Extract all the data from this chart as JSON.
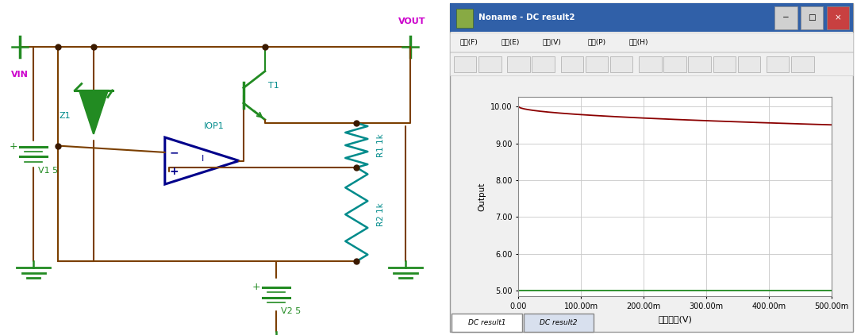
{
  "fig_width": 10.8,
  "fig_height": 4.22,
  "bg_color": "#ffffff",
  "right_bg": "#f0f0f0",
  "window_title": "Noname - DC result2",
  "menu_items": [
    "文件(F)",
    "編輯(E)",
    "視圖(V)",
    "處理(P)",
    "幫助(H)"
  ],
  "tab1": "DC result1",
  "tab2": "DC result2",
  "ylabel": "Output",
  "xlabel": "輸入電壓(V)",
  "yticks": [
    5.0,
    6.0,
    7.0,
    8.0,
    9.0,
    10.0
  ],
  "xtick_labels": [
    "0.00",
    "100.00m",
    "200.00m",
    "300.00m",
    "400.00m",
    "500.00m"
  ],
  "xtick_vals": [
    0.0,
    0.1,
    0.2,
    0.3,
    0.4,
    0.5
  ],
  "xmin": 0.0,
  "xmax": 0.5,
  "ymin": 5.0,
  "ymax": 10.2,
  "red_color": "#8b0000",
  "green_color": "#228B22",
  "grid_color": "#c8c8c8",
  "plot_bg": "#ffffff",
  "wire_color": "#7b3f00",
  "green_comp": "#228B22",
  "blue_comp": "#00008B",
  "teal_comp": "#008B8B",
  "magenta_label": "#CC00CC",
  "dot_color": "#3b1a00"
}
